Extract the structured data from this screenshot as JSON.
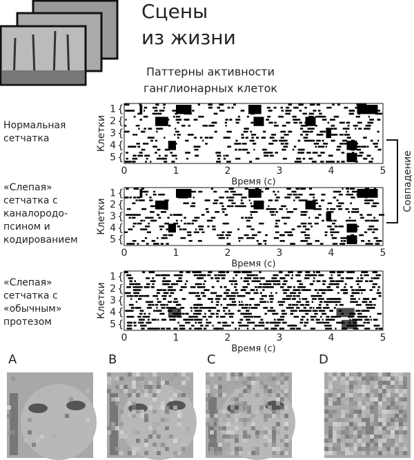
{
  "header": {
    "title": [
      "Сцены",
      "из жизни"
    ],
    "subtitle": [
      "Паттерны активности",
      "ганглионарных клеток"
    ]
  },
  "panels": [
    {
      "label": [
        "Нормальная",
        "сетчатка"
      ],
      "y_label": "Клетки",
      "cells": [
        "1",
        "2",
        "3",
        "4",
        "5"
      ],
      "x_ticks": [
        "0",
        "1",
        "2",
        "3",
        "4",
        "5"
      ],
      "x_label": "Время (с)"
    },
    {
      "label": [
        "«Слепая»",
        "сетчатка с",
        "каналородо-",
        "псином и",
        "кодированием"
      ],
      "y_label": "Клетки",
      "cells": [
        "1",
        "2",
        "3",
        "4",
        "5"
      ],
      "x_ticks": [
        "0",
        "1",
        "2",
        "3",
        "4",
        "5"
      ],
      "x_label": "Время (с)"
    },
    {
      "label": [
        "«Слепая»",
        "сетчатка с",
        "«обычным»",
        "протезом"
      ],
      "y_label": "Клетки",
      "cells": [
        "1",
        "2",
        "3",
        "4",
        "5"
      ],
      "x_ticks": [
        "0",
        "1",
        "2",
        "3",
        "4",
        "5"
      ],
      "x_label": "Время (с)"
    }
  ],
  "bracket_label": "Совпадение",
  "images": [
    {
      "label": "A"
    },
    {
      "label": "B"
    },
    {
      "label": "C"
    },
    {
      "label": "D"
    }
  ]
}
